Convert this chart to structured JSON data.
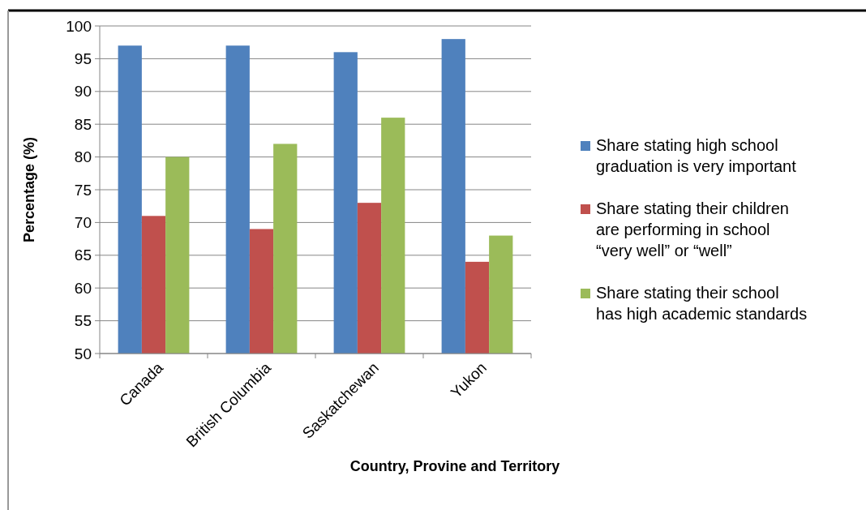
{
  "chart_data": {
    "type": "bar",
    "xlabel": "Country, Provine and Territory",
    "ylabel": "Percentage (%)",
    "categories": [
      "Canada",
      "British Columbia",
      "Saskatchewan",
      "Yukon"
    ],
    "series": [
      {
        "name": "Share stating high school graduation is very important",
        "color": "#4f81bd",
        "values": [
          97,
          97,
          96,
          98
        ]
      },
      {
        "name": "Share stating their children are performing in school “very well” or “well”",
        "color": "#c0504d",
        "values": [
          71,
          69,
          73,
          64
        ]
      },
      {
        "name": "Share stating their school has high academic standards",
        "color": "#9bbb59",
        "values": [
          80,
          82,
          86,
          68
        ]
      }
    ],
    "ylim": [
      50,
      100
    ],
    "yticks": [
      50,
      55,
      60,
      65,
      70,
      75,
      80,
      85,
      90,
      95,
      100
    ],
    "grid": "y",
    "legend": "right"
  }
}
